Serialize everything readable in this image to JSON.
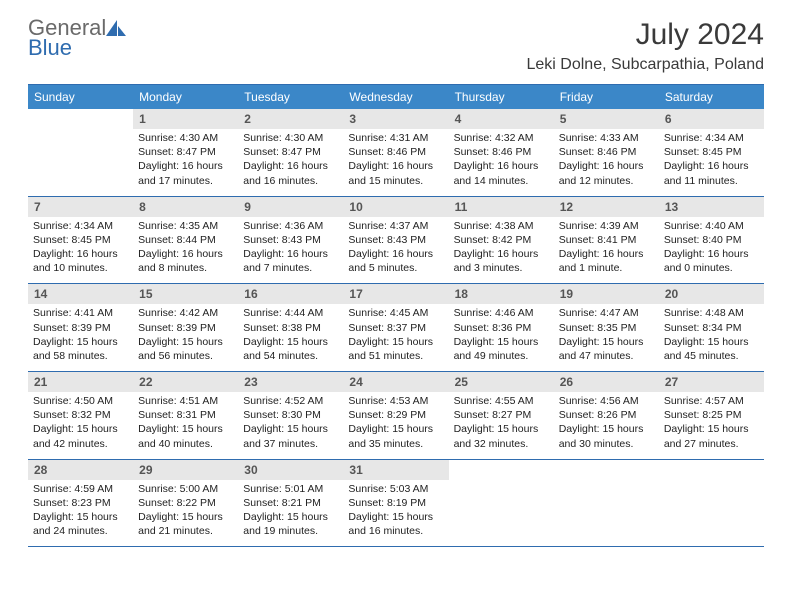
{
  "brand": {
    "part1": "General",
    "part2": "Blue"
  },
  "title": "July 2024",
  "location": "Leki Dolne, Subcarpathia, Poland",
  "weekdays": [
    "Sunday",
    "Monday",
    "Tuesday",
    "Wednesday",
    "Thursday",
    "Friday",
    "Saturday"
  ],
  "style": {
    "header_bg": "#3b87c8",
    "header_text": "#ffffff",
    "daynum_bg": "#e7e7e7",
    "daynum_text": "#555555",
    "rule_color": "#2f6caf",
    "body_text": "#222222",
    "page_bg": "#ffffff",
    "title_fontsize": 30,
    "header_fontsize": 12,
    "daynum_fontsize": 12,
    "body_fontsize": 10.5
  },
  "weeks": [
    [
      {
        "n": "",
        "sr": "",
        "ss": "",
        "dl": ""
      },
      {
        "n": "1",
        "sr": "Sunrise: 4:30 AM",
        "ss": "Sunset: 8:47 PM",
        "dl": "Daylight: 16 hours and 17 minutes."
      },
      {
        "n": "2",
        "sr": "Sunrise: 4:30 AM",
        "ss": "Sunset: 8:47 PM",
        "dl": "Daylight: 16 hours and 16 minutes."
      },
      {
        "n": "3",
        "sr": "Sunrise: 4:31 AM",
        "ss": "Sunset: 8:46 PM",
        "dl": "Daylight: 16 hours and 15 minutes."
      },
      {
        "n": "4",
        "sr": "Sunrise: 4:32 AM",
        "ss": "Sunset: 8:46 PM",
        "dl": "Daylight: 16 hours and 14 minutes."
      },
      {
        "n": "5",
        "sr": "Sunrise: 4:33 AM",
        "ss": "Sunset: 8:46 PM",
        "dl": "Daylight: 16 hours and 12 minutes."
      },
      {
        "n": "6",
        "sr": "Sunrise: 4:34 AM",
        "ss": "Sunset: 8:45 PM",
        "dl": "Daylight: 16 hours and 11 minutes."
      }
    ],
    [
      {
        "n": "7",
        "sr": "Sunrise: 4:34 AM",
        "ss": "Sunset: 8:45 PM",
        "dl": "Daylight: 16 hours and 10 minutes."
      },
      {
        "n": "8",
        "sr": "Sunrise: 4:35 AM",
        "ss": "Sunset: 8:44 PM",
        "dl": "Daylight: 16 hours and 8 minutes."
      },
      {
        "n": "9",
        "sr": "Sunrise: 4:36 AM",
        "ss": "Sunset: 8:43 PM",
        "dl": "Daylight: 16 hours and 7 minutes."
      },
      {
        "n": "10",
        "sr": "Sunrise: 4:37 AM",
        "ss": "Sunset: 8:43 PM",
        "dl": "Daylight: 16 hours and 5 minutes."
      },
      {
        "n": "11",
        "sr": "Sunrise: 4:38 AM",
        "ss": "Sunset: 8:42 PM",
        "dl": "Daylight: 16 hours and 3 minutes."
      },
      {
        "n": "12",
        "sr": "Sunrise: 4:39 AM",
        "ss": "Sunset: 8:41 PM",
        "dl": "Daylight: 16 hours and 1 minute."
      },
      {
        "n": "13",
        "sr": "Sunrise: 4:40 AM",
        "ss": "Sunset: 8:40 PM",
        "dl": "Daylight: 16 hours and 0 minutes."
      }
    ],
    [
      {
        "n": "14",
        "sr": "Sunrise: 4:41 AM",
        "ss": "Sunset: 8:39 PM",
        "dl": "Daylight: 15 hours and 58 minutes."
      },
      {
        "n": "15",
        "sr": "Sunrise: 4:42 AM",
        "ss": "Sunset: 8:39 PM",
        "dl": "Daylight: 15 hours and 56 minutes."
      },
      {
        "n": "16",
        "sr": "Sunrise: 4:44 AM",
        "ss": "Sunset: 8:38 PM",
        "dl": "Daylight: 15 hours and 54 minutes."
      },
      {
        "n": "17",
        "sr": "Sunrise: 4:45 AM",
        "ss": "Sunset: 8:37 PM",
        "dl": "Daylight: 15 hours and 51 minutes."
      },
      {
        "n": "18",
        "sr": "Sunrise: 4:46 AM",
        "ss": "Sunset: 8:36 PM",
        "dl": "Daylight: 15 hours and 49 minutes."
      },
      {
        "n": "19",
        "sr": "Sunrise: 4:47 AM",
        "ss": "Sunset: 8:35 PM",
        "dl": "Daylight: 15 hours and 47 minutes."
      },
      {
        "n": "20",
        "sr": "Sunrise: 4:48 AM",
        "ss": "Sunset: 8:34 PM",
        "dl": "Daylight: 15 hours and 45 minutes."
      }
    ],
    [
      {
        "n": "21",
        "sr": "Sunrise: 4:50 AM",
        "ss": "Sunset: 8:32 PM",
        "dl": "Daylight: 15 hours and 42 minutes."
      },
      {
        "n": "22",
        "sr": "Sunrise: 4:51 AM",
        "ss": "Sunset: 8:31 PM",
        "dl": "Daylight: 15 hours and 40 minutes."
      },
      {
        "n": "23",
        "sr": "Sunrise: 4:52 AM",
        "ss": "Sunset: 8:30 PM",
        "dl": "Daylight: 15 hours and 37 minutes."
      },
      {
        "n": "24",
        "sr": "Sunrise: 4:53 AM",
        "ss": "Sunset: 8:29 PM",
        "dl": "Daylight: 15 hours and 35 minutes."
      },
      {
        "n": "25",
        "sr": "Sunrise: 4:55 AM",
        "ss": "Sunset: 8:27 PM",
        "dl": "Daylight: 15 hours and 32 minutes."
      },
      {
        "n": "26",
        "sr": "Sunrise: 4:56 AM",
        "ss": "Sunset: 8:26 PM",
        "dl": "Daylight: 15 hours and 30 minutes."
      },
      {
        "n": "27",
        "sr": "Sunrise: 4:57 AM",
        "ss": "Sunset: 8:25 PM",
        "dl": "Daylight: 15 hours and 27 minutes."
      }
    ],
    [
      {
        "n": "28",
        "sr": "Sunrise: 4:59 AM",
        "ss": "Sunset: 8:23 PM",
        "dl": "Daylight: 15 hours and 24 minutes."
      },
      {
        "n": "29",
        "sr": "Sunrise: 5:00 AM",
        "ss": "Sunset: 8:22 PM",
        "dl": "Daylight: 15 hours and 21 minutes."
      },
      {
        "n": "30",
        "sr": "Sunrise: 5:01 AM",
        "ss": "Sunset: 8:21 PM",
        "dl": "Daylight: 15 hours and 19 minutes."
      },
      {
        "n": "31",
        "sr": "Sunrise: 5:03 AM",
        "ss": "Sunset: 8:19 PM",
        "dl": "Daylight: 15 hours and 16 minutes."
      },
      {
        "n": "",
        "sr": "",
        "ss": "",
        "dl": ""
      },
      {
        "n": "",
        "sr": "",
        "ss": "",
        "dl": ""
      },
      {
        "n": "",
        "sr": "",
        "ss": "",
        "dl": ""
      }
    ]
  ]
}
